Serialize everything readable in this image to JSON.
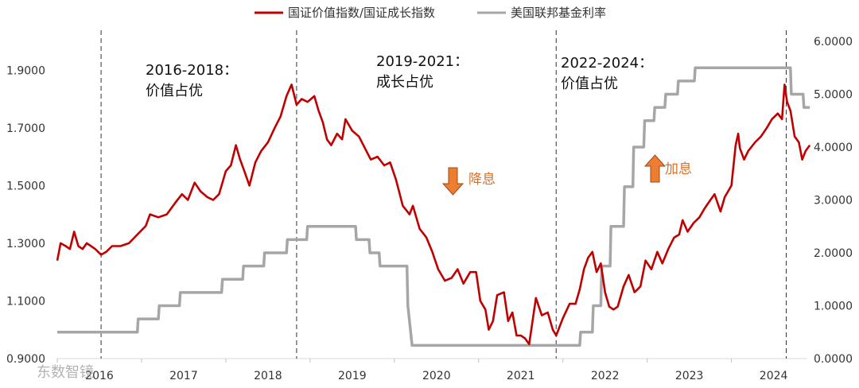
{
  "chart_data": {
    "type": "line",
    "title": "",
    "xlabel": "",
    "ylabel": "",
    "x_ticks": [
      "2016",
      "2017",
      "2018",
      "2019",
      "2020",
      "2021",
      "2022",
      "2023",
      "2024"
    ],
    "xlim": [
      2016.0,
      2024.9
    ],
    "left_axis": {
      "ticks": [
        "0.9000",
        "1.1000",
        "1.3000",
        "1.5000",
        "1.7000",
        "1.9000"
      ],
      "ylim": [
        0.9,
        2.0
      ]
    },
    "right_axis": {
      "ticks": [
        "0.0000",
        "1.0000",
        "2.0000",
        "3.0000",
        "4.0000",
        "5.0000",
        "6.0000"
      ],
      "ylim": [
        0,
        6
      ]
    },
    "grid": false,
    "legend_position": "top",
    "series": [
      {
        "name": "国证价值指数/国证成长指数",
        "axis": "left",
        "color": "#c00000",
        "points": [
          [
            2016.0,
            1.24
          ],
          [
            2016.04,
            1.3
          ],
          [
            2016.1,
            1.29
          ],
          [
            2016.15,
            1.28
          ],
          [
            2016.2,
            1.34
          ],
          [
            2016.25,
            1.29
          ],
          [
            2016.3,
            1.28
          ],
          [
            2016.35,
            1.3
          ],
          [
            2016.4,
            1.29
          ],
          [
            2016.45,
            1.28
          ],
          [
            2016.52,
            1.26
          ],
          [
            2016.58,
            1.27
          ],
          [
            2016.65,
            1.29
          ],
          [
            2016.75,
            1.29
          ],
          [
            2016.85,
            1.3
          ],
          [
            2016.95,
            1.33
          ],
          [
            2017.05,
            1.36
          ],
          [
            2017.1,
            1.4
          ],
          [
            2017.2,
            1.39
          ],
          [
            2017.3,
            1.4
          ],
          [
            2017.4,
            1.44
          ],
          [
            2017.48,
            1.47
          ],
          [
            2017.55,
            1.45
          ],
          [
            2017.63,
            1.51
          ],
          [
            2017.7,
            1.48
          ],
          [
            2017.78,
            1.46
          ],
          [
            2017.85,
            1.45
          ],
          [
            2017.92,
            1.47
          ],
          [
            2018.0,
            1.55
          ],
          [
            2018.06,
            1.57
          ],
          [
            2018.12,
            1.64
          ],
          [
            2018.17,
            1.59
          ],
          [
            2018.22,
            1.55
          ],
          [
            2018.28,
            1.5
          ],
          [
            2018.35,
            1.58
          ],
          [
            2018.42,
            1.62
          ],
          [
            2018.5,
            1.65
          ],
          [
            2018.58,
            1.7
          ],
          [
            2018.65,
            1.74
          ],
          [
            2018.72,
            1.81
          ],
          [
            2018.78,
            1.85
          ],
          [
            2018.84,
            1.78
          ],
          [
            2018.9,
            1.8
          ],
          [
            2018.97,
            1.79
          ],
          [
            2019.05,
            1.81
          ],
          [
            2019.1,
            1.76
          ],
          [
            2019.15,
            1.72
          ],
          [
            2019.2,
            1.66
          ],
          [
            2019.25,
            1.64
          ],
          [
            2019.32,
            1.68
          ],
          [
            2019.38,
            1.66
          ],
          [
            2019.42,
            1.73
          ],
          [
            2019.5,
            1.69
          ],
          [
            2019.58,
            1.67
          ],
          [
            2019.65,
            1.63
          ],
          [
            2019.72,
            1.59
          ],
          [
            2019.8,
            1.6
          ],
          [
            2019.88,
            1.57
          ],
          [
            2019.95,
            1.58
          ],
          [
            2020.02,
            1.52
          ],
          [
            2020.1,
            1.43
          ],
          [
            2020.18,
            1.4
          ],
          [
            2020.22,
            1.43
          ],
          [
            2020.3,
            1.35
          ],
          [
            2020.38,
            1.32
          ],
          [
            2020.45,
            1.27
          ],
          [
            2020.52,
            1.21
          ],
          [
            2020.6,
            1.17
          ],
          [
            2020.68,
            1.18
          ],
          [
            2020.75,
            1.21
          ],
          [
            2020.82,
            1.16
          ],
          [
            2020.9,
            1.2
          ],
          [
            2020.97,
            1.2
          ],
          [
            2021.02,
            1.1
          ],
          [
            2021.08,
            1.07
          ],
          [
            2021.12,
            1.0
          ],
          [
            2021.17,
            1.03
          ],
          [
            2021.22,
            1.12
          ],
          [
            2021.3,
            1.13
          ],
          [
            2021.35,
            1.03
          ],
          [
            2021.4,
            1.06
          ],
          [
            2021.45,
            0.98
          ],
          [
            2021.5,
            0.98
          ],
          [
            2021.55,
            0.97
          ],
          [
            2021.6,
            0.95
          ],
          [
            2021.68,
            1.11
          ],
          [
            2021.75,
            1.05
          ],
          [
            2021.82,
            1.06
          ],
          [
            2021.88,
            1.0
          ],
          [
            2021.92,
            0.98
          ],
          [
            2022.0,
            1.04
          ],
          [
            2022.08,
            1.09
          ],
          [
            2022.15,
            1.09
          ],
          [
            2022.2,
            1.14
          ],
          [
            2022.25,
            1.21
          ],
          [
            2022.3,
            1.25
          ],
          [
            2022.35,
            1.27
          ],
          [
            2022.4,
            1.2
          ],
          [
            2022.45,
            1.23
          ],
          [
            2022.5,
            1.13
          ],
          [
            2022.55,
            1.08
          ],
          [
            2022.6,
            1.07
          ],
          [
            2022.65,
            1.08
          ],
          [
            2022.72,
            1.15
          ],
          [
            2022.78,
            1.19
          ],
          [
            2022.85,
            1.13
          ],
          [
            2022.92,
            1.15
          ],
          [
            2022.98,
            1.24
          ],
          [
            2023.05,
            1.21
          ],
          [
            2023.12,
            1.27
          ],
          [
            2023.18,
            1.23
          ],
          [
            2023.25,
            1.28
          ],
          [
            2023.32,
            1.32
          ],
          [
            2023.38,
            1.33
          ],
          [
            2023.42,
            1.38
          ],
          [
            2023.48,
            1.34
          ],
          [
            2023.55,
            1.37
          ],
          [
            2023.62,
            1.39
          ],
          [
            2023.68,
            1.42
          ],
          [
            2023.75,
            1.45
          ],
          [
            2023.8,
            1.47
          ],
          [
            2023.87,
            1.41
          ],
          [
            2023.92,
            1.46
          ],
          [
            2024.0,
            1.5
          ],
          [
            2024.05,
            1.64
          ],
          [
            2024.08,
            1.68
          ],
          [
            2024.1,
            1.63
          ],
          [
            2024.15,
            1.59
          ],
          [
            2024.2,
            1.62
          ],
          [
            2024.28,
            1.65
          ],
          [
            2024.35,
            1.67
          ],
          [
            2024.42,
            1.7
          ],
          [
            2024.48,
            1.73
          ],
          [
            2024.55,
            1.75
          ],
          [
            2024.6,
            1.73
          ],
          [
            2024.63,
            1.85
          ],
          [
            2024.66,
            1.79
          ],
          [
            2024.7,
            1.76
          ],
          [
            2024.75,
            1.67
          ],
          [
            2024.8,
            1.65
          ],
          [
            2024.84,
            1.59
          ],
          [
            2024.88,
            1.62
          ],
          [
            2024.93,
            1.64
          ]
        ]
      },
      {
        "name": "美国联邦基金利率",
        "axis": "right",
        "color": "#a6a6a6",
        "points": [
          [
            2016.0,
            0.5
          ],
          [
            2016.95,
            0.5
          ],
          [
            2016.96,
            0.75
          ],
          [
            2017.2,
            0.75
          ],
          [
            2017.21,
            1.0
          ],
          [
            2017.45,
            1.0
          ],
          [
            2017.46,
            1.25
          ],
          [
            2017.95,
            1.25
          ],
          [
            2017.96,
            1.5
          ],
          [
            2018.2,
            1.5
          ],
          [
            2018.21,
            1.75
          ],
          [
            2018.45,
            1.75
          ],
          [
            2018.46,
            2.0
          ],
          [
            2018.72,
            2.0
          ],
          [
            2018.73,
            2.25
          ],
          [
            2018.96,
            2.25
          ],
          [
            2018.97,
            2.5
          ],
          [
            2019.54,
            2.5
          ],
          [
            2019.55,
            2.25
          ],
          [
            2019.7,
            2.25
          ],
          [
            2019.71,
            2.0
          ],
          [
            2019.82,
            2.0
          ],
          [
            2019.83,
            1.75
          ],
          [
            2020.15,
            1.75
          ],
          [
            2020.16,
            1.0
          ],
          [
            2020.21,
            0.25
          ],
          [
            2022.2,
            0.25
          ],
          [
            2022.21,
            0.5
          ],
          [
            2022.35,
            0.5
          ],
          [
            2022.36,
            1.0
          ],
          [
            2022.45,
            1.0
          ],
          [
            2022.46,
            1.75
          ],
          [
            2022.56,
            1.75
          ],
          [
            2022.57,
            2.5
          ],
          [
            2022.72,
            2.5
          ],
          [
            2022.73,
            3.25
          ],
          [
            2022.83,
            3.25
          ],
          [
            2022.84,
            4.0
          ],
          [
            2022.96,
            4.0
          ],
          [
            2022.97,
            4.5
          ],
          [
            2023.08,
            4.5
          ],
          [
            2023.09,
            4.75
          ],
          [
            2023.21,
            4.75
          ],
          [
            2023.22,
            5.0
          ],
          [
            2023.36,
            5.0
          ],
          [
            2023.37,
            5.25
          ],
          [
            2023.56,
            5.25
          ],
          [
            2023.57,
            5.5
          ],
          [
            2024.7,
            5.5
          ],
          [
            2024.71,
            5.0
          ],
          [
            2024.85,
            5.0
          ],
          [
            2024.86,
            4.75
          ],
          [
            2024.93,
            4.75
          ]
        ]
      }
    ],
    "vlines": [
      2016.52,
      2018.84,
      2021.92,
      2024.65
    ],
    "annotations": [
      {
        "line1": "2016-2018：",
        "line2": "价值占优"
      },
      {
        "line1": "2019-2021：",
        "line2": "成长占优"
      },
      {
        "line1": "2022-2024：",
        "line2": "价值占优"
      }
    ],
    "arrows": [
      {
        "direction": "down",
        "label": "降息",
        "color": "#ed7d31"
      },
      {
        "direction": "up",
        "label": "加息",
        "color": "#ed7d31"
      }
    ]
  },
  "watermark": "东数智镜"
}
